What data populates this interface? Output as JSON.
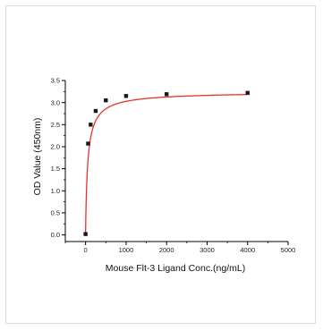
{
  "chart_data": {
    "type": "scatter",
    "title": "",
    "xlabel": "Mouse Flt-3 Ligand Conc.(ng/mL)",
    "ylabel": "OD Value (450nm)",
    "xlim": [
      -500,
      5000
    ],
    "ylim": [
      -0.15,
      3.5
    ],
    "x_ticks": [
      0,
      1000,
      2000,
      3000,
      4000,
      5000
    ],
    "y_ticks": [
      0.0,
      0.5,
      1.0,
      1.5,
      2.0,
      2.5,
      3.0,
      3.5
    ],
    "x_tick_labels": [
      "0",
      "1000",
      "2000",
      "3000",
      "4000",
      "5000"
    ],
    "y_tick_labels": [
      "0.0",
      "0.5",
      "1.0",
      "1.5",
      "2.0",
      "2.5",
      "3.0",
      "3.5"
    ],
    "grid": false,
    "series": [
      {
        "points": [
          {
            "x": 0,
            "y": 0.02
          },
          {
            "x": 62.5,
            "y": 2.07
          },
          {
            "x": 125,
            "y": 2.5
          },
          {
            "x": 250,
            "y": 2.81
          },
          {
            "x": 500,
            "y": 3.05
          },
          {
            "x": 1000,
            "y": 3.15
          },
          {
            "x": 2000,
            "y": 3.19
          },
          {
            "x": 4000,
            "y": 3.22
          }
        ],
        "marker": "square",
        "marker_color": "#1a1a1a",
        "fit_line_color": "#e8322e"
      }
    ]
  }
}
